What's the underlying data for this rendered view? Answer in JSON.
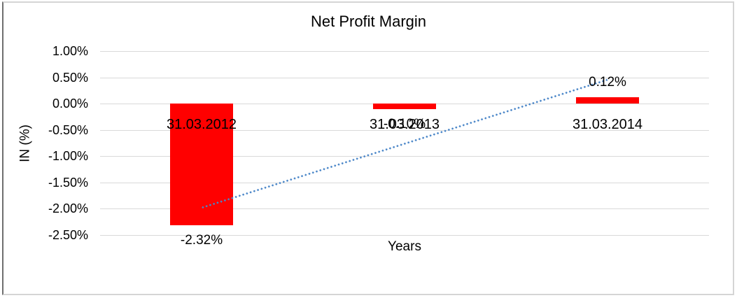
{
  "chart_data": {
    "type": "bar",
    "title": "Net Profit Margin",
    "xlabel": "Years",
    "ylabel": "IN (%)",
    "categories": [
      "31.03.2012",
      "31.03.2013",
      "31.03.2014"
    ],
    "values": [
      -2.32,
      -0.1,
      0.12
    ],
    "data_labels": [
      "-2.32%",
      "-0.10%",
      "0.12%"
    ],
    "yticks": [
      1.0,
      0.5,
      0.0,
      -0.5,
      -1.0,
      -1.5,
      -2.0,
      -2.5
    ],
    "ytick_labels": [
      "1.00%",
      "0.50%",
      "0.00%",
      "-0.50%",
      "-1.00%",
      "-1.50%",
      "-2.00%",
      "-2.50%"
    ],
    "ylim": [
      -2.5,
      1.0
    ],
    "gridlines": true,
    "legend": "none",
    "bar_color": "#ff0000",
    "grid_color": "#d9d9d9",
    "text_color": "#000000",
    "trendline": {
      "type": "linear",
      "style": "dotted",
      "color": "#4a86c8",
      "start_value": -1.99,
      "end_value": 0.45,
      "from_category": "31.03.2012",
      "to_category": "31.03.2014"
    }
  }
}
